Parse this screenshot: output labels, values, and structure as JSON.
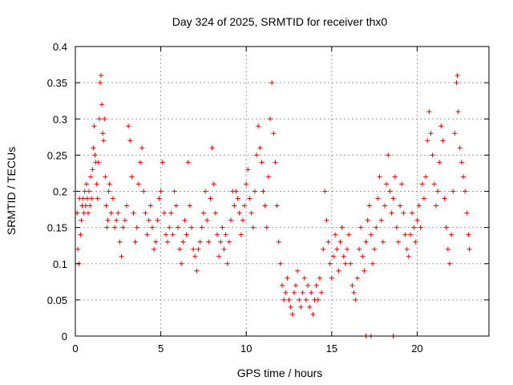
{
  "chart_data": {
    "type": "scatter",
    "title": "Day 324 of 2025, SRMTID for receiver thx0",
    "xlabel": "GPS time / hours",
    "ylabel": "SRMTID / TECUs",
    "xlim": [
      0,
      24.2
    ],
    "ylim": [
      0,
      0.4
    ],
    "xticks": [
      0,
      5,
      10,
      15,
      20
    ],
    "yticks": [
      0,
      0.05,
      0.1,
      0.15,
      0.2,
      0.25,
      0.3,
      0.35,
      0.4
    ],
    "xtick_labels": [
      "0",
      "5",
      "10",
      "15",
      "20"
    ],
    "ytick_labels": [
      "0",
      "0.05",
      "0.1",
      "0.15",
      "0.2",
      "0.25",
      "0.3",
      "0.35",
      "0.4"
    ],
    "grid": true,
    "marker": "plus",
    "color": "#ee0000",
    "points": [
      [
        0.0,
        0.2
      ],
      [
        0.1,
        0.17
      ],
      [
        0.15,
        0.12
      ],
      [
        0.2,
        0.1
      ],
      [
        0.25,
        0.19
      ],
      [
        0.3,
        0.14
      ],
      [
        0.35,
        0.16
      ],
      [
        0.4,
        0.18
      ],
      [
        0.45,
        0.19
      ],
      [
        0.5,
        0.17
      ],
      [
        0.55,
        0.2
      ],
      [
        0.6,
        0.18
      ],
      [
        0.65,
        0.21
      ],
      [
        0.7,
        0.19
      ],
      [
        0.75,
        0.17
      ],
      [
        0.8,
        0.2
      ],
      [
        0.85,
        0.18
      ],
      [
        0.9,
        0.22
      ],
      [
        0.95,
        0.19
      ],
      [
        1.0,
        0.23
      ],
      [
        1.05,
        0.26
      ],
      [
        1.1,
        0.29
      ],
      [
        1.15,
        0.25
      ],
      [
        1.2,
        0.24
      ],
      [
        1.25,
        0.21
      ],
      [
        1.3,
        0.19
      ],
      [
        1.35,
        0.24
      ],
      [
        1.4,
        0.3
      ],
      [
        1.45,
        0.35
      ],
      [
        1.5,
        0.36
      ],
      [
        1.55,
        0.32
      ],
      [
        1.6,
        0.28
      ],
      [
        1.65,
        0.27
      ],
      [
        1.7,
        0.3
      ],
      [
        1.75,
        0.22
      ],
      [
        1.8,
        0.18
      ],
      [
        1.85,
        0.15
      ],
      [
        1.9,
        0.16
      ],
      [
        1.95,
        0.2
      ],
      [
        2.0,
        0.21
      ],
      [
        2.1,
        0.17
      ],
      [
        2.2,
        0.19
      ],
      [
        2.3,
        0.15
      ],
      [
        2.4,
        0.16
      ],
      [
        2.5,
        0.17
      ],
      [
        2.6,
        0.13
      ],
      [
        2.7,
        0.11
      ],
      [
        2.8,
        0.15
      ],
      [
        2.9,
        0.16
      ],
      [
        3.0,
        0.18
      ],
      [
        3.1,
        0.29
      ],
      [
        3.2,
        0.27
      ],
      [
        3.3,
        0.22
      ],
      [
        3.4,
        0.17
      ],
      [
        3.5,
        0.13
      ],
      [
        3.6,
        0.15
      ],
      [
        3.7,
        0.21
      ],
      [
        3.8,
        0.24
      ],
      [
        3.9,
        0.26
      ],
      [
        4.0,
        0.2
      ],
      [
        4.1,
        0.17
      ],
      [
        4.2,
        0.14
      ],
      [
        4.3,
        0.16
      ],
      [
        4.4,
        0.18
      ],
      [
        4.5,
        0.15
      ],
      [
        4.6,
        0.12
      ],
      [
        4.7,
        0.13
      ],
      [
        4.8,
        0.16
      ],
      [
        4.9,
        0.19
      ],
      [
        5.0,
        0.2
      ],
      [
        5.1,
        0.24
      ],
      [
        5.2,
        0.17
      ],
      [
        5.3,
        0.14
      ],
      [
        5.4,
        0.13
      ],
      [
        5.5,
        0.15
      ],
      [
        5.6,
        0.17
      ],
      [
        5.7,
        0.14
      ],
      [
        5.8,
        0.2
      ],
      [
        5.9,
        0.18
      ],
      [
        6.0,
        0.15
      ],
      [
        6.1,
        0.12
      ],
      [
        6.2,
        0.1
      ],
      [
        6.3,
        0.13
      ],
      [
        6.4,
        0.16
      ],
      [
        6.5,
        0.14
      ],
      [
        6.6,
        0.24
      ],
      [
        6.7,
        0.18
      ],
      [
        6.8,
        0.15
      ],
      [
        6.9,
        0.12
      ],
      [
        7.0,
        0.11
      ],
      [
        7.1,
        0.09
      ],
      [
        7.2,
        0.12
      ],
      [
        7.3,
        0.13
      ],
      [
        7.4,
        0.15
      ],
      [
        7.5,
        0.17
      ],
      [
        7.6,
        0.2
      ],
      [
        7.7,
        0.16
      ],
      [
        7.8,
        0.13
      ],
      [
        7.9,
        0.19
      ],
      [
        8.0,
        0.26
      ],
      [
        8.1,
        0.21
      ],
      [
        8.2,
        0.17
      ],
      [
        8.3,
        0.14
      ],
      [
        8.4,
        0.11
      ],
      [
        8.5,
        0.13
      ],
      [
        8.6,
        0.15
      ],
      [
        8.7,
        0.12
      ],
      [
        8.8,
        0.14
      ],
      [
        8.9,
        0.1
      ],
      [
        9.0,
        0.13
      ],
      [
        9.1,
        0.16
      ],
      [
        9.2,
        0.2
      ],
      [
        9.3,
        0.18
      ],
      [
        9.4,
        0.2
      ],
      [
        9.5,
        0.19
      ],
      [
        9.6,
        0.17
      ],
      [
        9.7,
        0.14
      ],
      [
        9.8,
        0.16
      ],
      [
        9.9,
        0.18
      ],
      [
        10.0,
        0.21
      ],
      [
        10.1,
        0.23
      ],
      [
        10.2,
        0.19
      ],
      [
        10.3,
        0.17
      ],
      [
        10.4,
        0.15
      ],
      [
        10.5,
        0.2
      ],
      [
        10.6,
        0.25
      ],
      [
        10.7,
        0.29
      ],
      [
        10.8,
        0.26
      ],
      [
        10.9,
        0.24
      ],
      [
        11.0,
        0.2
      ],
      [
        11.1,
        0.18
      ],
      [
        11.2,
        0.15
      ],
      [
        11.3,
        0.22
      ],
      [
        11.4,
        0.3
      ],
      [
        11.5,
        0.35
      ],
      [
        11.6,
        0.28
      ],
      [
        11.7,
        0.24
      ],
      [
        11.8,
        0.18
      ],
      [
        11.9,
        0.13
      ],
      [
        12.0,
        0.1
      ],
      [
        12.1,
        0.07
      ],
      [
        12.2,
        0.05
      ],
      [
        12.3,
        0.06
      ],
      [
        12.4,
        0.08
      ],
      [
        12.5,
        0.05
      ],
      [
        12.6,
        0.04
      ],
      [
        12.7,
        0.03
      ],
      [
        12.8,
        0.06
      ],
      [
        12.9,
        0.07
      ],
      [
        13.0,
        0.09
      ],
      [
        13.1,
        0.05
      ],
      [
        13.2,
        0.04
      ],
      [
        13.3,
        0.06
      ],
      [
        13.4,
        0.08
      ],
      [
        13.5,
        0.05
      ],
      [
        13.6,
        0.07
      ],
      [
        13.7,
        0.04
      ],
      [
        13.8,
        0.06
      ],
      [
        13.9,
        0.03
      ],
      [
        14.0,
        0.05
      ],
      [
        14.1,
        0.07
      ],
      [
        14.2,
        0.05
      ],
      [
        14.3,
        0.08
      ],
      [
        14.4,
        0.06
      ],
      [
        14.5,
        0.12
      ],
      [
        14.6,
        0.2
      ],
      [
        14.7,
        0.16
      ],
      [
        14.8,
        0.13
      ],
      [
        14.9,
        0.1
      ],
      [
        15.0,
        0.08
      ],
      [
        15.1,
        0.11
      ],
      [
        15.2,
        0.14
      ],
      [
        15.3,
        0.12
      ],
      [
        15.4,
        0.09
      ],
      [
        15.5,
        0.13
      ],
      [
        15.6,
        0.15
      ],
      [
        15.7,
        0.11
      ],
      [
        15.8,
        0.1
      ],
      [
        15.9,
        0.12
      ],
      [
        16.0,
        0.14
      ],
      [
        16.1,
        0.1
      ],
      [
        16.2,
        0.07
      ],
      [
        16.3,
        0.06
      ],
      [
        16.4,
        0.05
      ],
      [
        16.5,
        0.08
      ],
      [
        16.6,
        0.12
      ],
      [
        16.7,
        0.15
      ],
      [
        16.8,
        0.11
      ],
      [
        16.9,
        0.09
      ],
      [
        17.0,
        0.13
      ],
      [
        17.1,
        0.16
      ],
      [
        17.2,
        0.18
      ],
      [
        17.3,
        0.14
      ],
      [
        17.4,
        0.1
      ],
      [
        17.5,
        0.12
      ],
      [
        17.6,
        0.15
      ],
      [
        17.7,
        0.19
      ],
      [
        17.8,
        0.22
      ],
      [
        17.9,
        0.16
      ],
      [
        18.0,
        0.13
      ],
      [
        18.1,
        0.18
      ],
      [
        18.2,
        0.21
      ],
      [
        18.3,
        0.25
      ],
      [
        18.4,
        0.2
      ],
      [
        18.5,
        0.17
      ],
      [
        18.6,
        0.19
      ],
      [
        18.7,
        0.22
      ],
      [
        18.8,
        0.15
      ],
      [
        18.9,
        0.13
      ],
      [
        19.0,
        0.18
      ],
      [
        19.1,
        0.21
      ],
      [
        19.2,
        0.17
      ],
      [
        19.3,
        0.14
      ],
      [
        19.4,
        0.12
      ],
      [
        19.5,
        0.11
      ],
      [
        19.6,
        0.14
      ],
      [
        19.7,
        0.17
      ],
      [
        19.8,
        0.15
      ],
      [
        19.9,
        0.13
      ],
      [
        20.0,
        0.16
      ],
      [
        20.1,
        0.18
      ],
      [
        20.2,
        0.15
      ],
      [
        20.3,
        0.21
      ],
      [
        20.4,
        0.19
      ],
      [
        20.5,
        0.22
      ],
      [
        20.6,
        0.27
      ],
      [
        20.7,
        0.31
      ],
      [
        20.8,
        0.28
      ],
      [
        20.9,
        0.25
      ],
      [
        21.0,
        0.21
      ],
      [
        21.1,
        0.18
      ],
      [
        21.2,
        0.2
      ],
      [
        21.3,
        0.24
      ],
      [
        21.4,
        0.29
      ],
      [
        21.5,
        0.27
      ],
      [
        21.6,
        0.19
      ],
      [
        21.7,
        0.15
      ],
      [
        21.8,
        0.12
      ],
      [
        21.9,
        0.1
      ],
      [
        22.0,
        0.14
      ],
      [
        22.1,
        0.2
      ],
      [
        22.2,
        0.28
      ],
      [
        22.3,
        0.35
      ],
      [
        22.35,
        0.36
      ],
      [
        22.4,
        0.31
      ],
      [
        22.5,
        0.26
      ],
      [
        22.6,
        0.24
      ],
      [
        22.7,
        0.22
      ],
      [
        22.8,
        0.2
      ],
      [
        22.9,
        0.17
      ],
      [
        23.0,
        0.14
      ],
      [
        23.05,
        0.12
      ],
      [
        17.0,
        0.0
      ],
      [
        17.3,
        0.0
      ],
      [
        18.6,
        0.0
      ]
    ]
  }
}
